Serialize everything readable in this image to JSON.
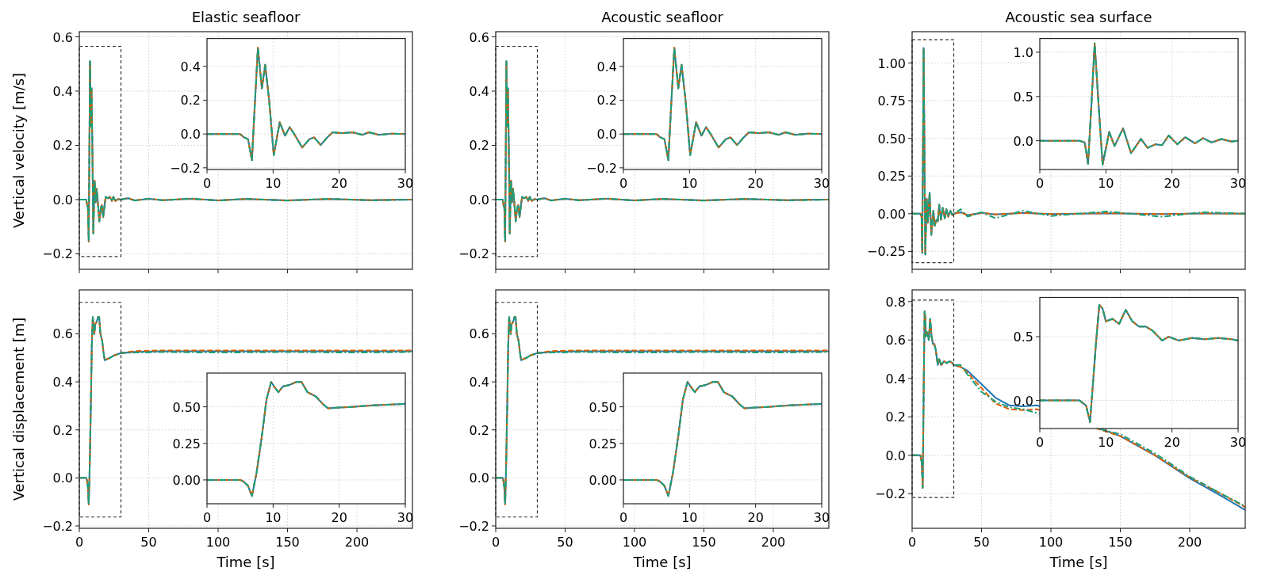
{
  "chart_data": [
    {
      "type": "line",
      "title": "Elastic seafloor",
      "ylabel": "Vertical velocity [m/s]",
      "tick_labels": "y",
      "grid": true,
      "xlim": [
        0,
        240
      ],
      "ylim": [
        -0.257,
        0.619
      ],
      "xticks": [
        0,
        50,
        100,
        150,
        200
      ],
      "yticks": [
        {
          "value": -0.2,
          "label": "−0.2"
        },
        {
          "value": 0,
          "label": "0.0"
        },
        {
          "value": 0.2,
          "label": "0.2"
        },
        {
          "value": 0.4,
          "label": "0.4"
        },
        {
          "value": 0.6,
          "label": "0.6"
        }
      ],
      "x": [
        0,
        5,
        5.6,
        6.2,
        6.8,
        7.2,
        7.7,
        8.3,
        8.8,
        9.4,
        10.1,
        11,
        11.8,
        12.5,
        13.2,
        14.4,
        15.5,
        16.2,
        17.2,
        18.2,
        19,
        20.5,
        22,
        23.5,
        24.5,
        26,
        28,
        30,
        35,
        40,
        50,
        60,
        80,
        100,
        120,
        150,
        180,
        210,
        240
      ],
      "series": [
        {
          "color": "#1f77b4",
          "line_style": "solid",
          "values": [
            0,
            0,
            -0.02,
            -0.03,
            -0.155,
            0.15,
            0.51,
            0.27,
            0.41,
            0.2,
            -0.125,
            0.07,
            -0.01,
            0.04,
            0.0,
            -0.08,
            -0.03,
            -0.02,
            -0.065,
            -0.02,
            0.01,
            0.005,
            0.01,
            -0.005,
            0.01,
            -0.005,
            0.002,
            0.0,
            0.005,
            -0.003,
            0.003,
            -0.002,
            0.003,
            -0.003,
            0.002,
            -0.003,
            0.002,
            -0.002,
            0
          ]
        },
        {
          "color": "#d95f02",
          "line_style": "dashed",
          "values": [
            0,
            0,
            -0.02,
            -0.03,
            -0.155,
            0.15,
            0.51,
            0.27,
            0.41,
            0.2,
            -0.125,
            0.07,
            -0.01,
            0.04,
            0.0,
            -0.08,
            -0.03,
            -0.02,
            -0.065,
            -0.02,
            0.01,
            0.005,
            0.01,
            -0.005,
            0.01,
            -0.005,
            0.002,
            0.0,
            0.005,
            -0.003,
            0.003,
            -0.002,
            0.003,
            -0.003,
            0.002,
            -0.003,
            0.002,
            -0.002,
            0
          ]
        },
        {
          "color": "#1b9e77",
          "line_style": "dashdot",
          "values": [
            0,
            0,
            -0.02,
            -0.03,
            -0.155,
            0.15,
            0.51,
            0.27,
            0.41,
            0.2,
            -0.125,
            0.07,
            -0.01,
            0.04,
            0.0,
            -0.08,
            -0.03,
            -0.02,
            -0.065,
            -0.02,
            0.01,
            0.005,
            0.01,
            -0.005,
            0.01,
            -0.005,
            0.002,
            0.0,
            0.006,
            -0.004,
            0.004,
            -0.003,
            0.004,
            -0.004,
            0.003,
            -0.004,
            0.003,
            -0.003,
            0
          ]
        }
      ]
    },
    {
      "type": "line",
      "grid": true,
      "xlim": [
        0,
        30
      ],
      "ylim": [
        -0.21,
        0.565
      ],
      "xticks": [
        0,
        10,
        20,
        30
      ],
      "yticks": [
        {
          "value": -0.2,
          "label": "−0.2"
        },
        {
          "value": 0,
          "label": "0.0"
        },
        {
          "value": 0.2,
          "label": "0.2"
        },
        {
          "value": 0.4,
          "label": "0.4"
        }
      ],
      "x": [
        0,
        5,
        5.6,
        6.2,
        6.8,
        7.2,
        7.7,
        8.3,
        8.8,
        9.4,
        10.1,
        11,
        11.8,
        12.5,
        13.2,
        14.4,
        15.5,
        16.2,
        17.2,
        18.2,
        19,
        20.5,
        22,
        23.5,
        24.5,
        26,
        28,
        30
      ],
      "series": [
        {
          "color": "#1f77b4",
          "line_style": "solid",
          "values": [
            0,
            0,
            -0.02,
            -0.03,
            -0.155,
            0.15,
            0.51,
            0.27,
            0.41,
            0.2,
            -0.125,
            0.07,
            -0.01,
            0.04,
            0.0,
            -0.08,
            -0.03,
            -0.02,
            -0.065,
            -0.02,
            0.01,
            0.005,
            0.01,
            -0.005,
            0.01,
            -0.005,
            0.002,
            0.0
          ]
        },
        {
          "color": "#d95f02",
          "line_style": "dashed",
          "values": [
            0,
            0,
            -0.02,
            -0.03,
            -0.155,
            0.15,
            0.51,
            0.27,
            0.41,
            0.2,
            -0.125,
            0.07,
            -0.01,
            0.04,
            0.0,
            -0.08,
            -0.03,
            -0.02,
            -0.065,
            -0.02,
            0.01,
            0.005,
            0.01,
            -0.005,
            0.01,
            -0.005,
            0.002,
            0.0
          ]
        },
        {
          "color": "#1b9e77",
          "line_style": "dashdot",
          "values": [
            0,
            0,
            -0.02,
            -0.03,
            -0.155,
            0.15,
            0.51,
            0.27,
            0.41,
            0.2,
            -0.125,
            0.07,
            -0.01,
            0.04,
            0.0,
            -0.08,
            -0.03,
            -0.02,
            -0.065,
            -0.02,
            0.01,
            0.005,
            0.01,
            -0.005,
            0.01,
            -0.005,
            0.002,
            0.0
          ]
        }
      ]
    },
    {
      "type": "line",
      "title": "Acoustic seafloor",
      "tick_labels": "y",
      "grid": true,
      "xlim": [
        0,
        240
      ],
      "ylim": [
        -0.257,
        0.619
      ],
      "xticks": [
        0,
        50,
        100,
        150,
        200
      ],
      "yticks": [
        {
          "value": -0.2,
          "label": "−0.2"
        },
        {
          "value": 0,
          "label": "0.0"
        },
        {
          "value": 0.2,
          "label": "0.2"
        },
        {
          "value": 0.4,
          "label": "0.4"
        },
        {
          "value": 0.6,
          "label": "0.6"
        }
      ],
      "x": [
        0,
        5,
        5.6,
        6.2,
        6.8,
        7.2,
        7.7,
        8.3,
        8.8,
        9.4,
        10.1,
        11,
        11.8,
        12.5,
        13.2,
        14.4,
        15.5,
        16.2,
        17.2,
        18.2,
        19,
        20.5,
        22,
        23.5,
        24.5,
        26,
        28,
        30,
        35,
        40,
        50,
        60,
        80,
        100,
        120,
        150,
        180,
        210,
        240
      ],
      "series": [
        {
          "color": "#1f77b4",
          "line_style": "solid",
          "values": [
            0,
            0,
            -0.02,
            -0.03,
            -0.155,
            0.15,
            0.51,
            0.27,
            0.41,
            0.2,
            -0.125,
            0.07,
            -0.01,
            0.04,
            0.0,
            -0.08,
            -0.03,
            -0.02,
            -0.065,
            -0.02,
            0.01,
            0.005,
            0.01,
            -0.005,
            0.01,
            -0.005,
            0.002,
            0.0,
            0.005,
            -0.003,
            0.003,
            -0.002,
            0.003,
            -0.003,
            0.002,
            -0.003,
            0.002,
            -0.002,
            0
          ]
        },
        {
          "color": "#d95f02",
          "line_style": "dashed",
          "values": [
            0,
            0,
            -0.02,
            -0.03,
            -0.155,
            0.15,
            0.51,
            0.27,
            0.41,
            0.2,
            -0.125,
            0.07,
            -0.01,
            0.04,
            0.0,
            -0.08,
            -0.03,
            -0.02,
            -0.065,
            -0.02,
            0.01,
            0.005,
            0.01,
            -0.005,
            0.01,
            -0.005,
            0.002,
            0.0,
            0.005,
            -0.003,
            0.003,
            -0.002,
            0.003,
            -0.003,
            0.002,
            -0.003,
            0.002,
            -0.002,
            0
          ]
        },
        {
          "color": "#1b9e77",
          "line_style": "dashdot",
          "values": [
            0,
            0,
            -0.02,
            -0.03,
            -0.155,
            0.15,
            0.51,
            0.27,
            0.41,
            0.2,
            -0.125,
            0.07,
            -0.01,
            0.04,
            0.0,
            -0.08,
            -0.03,
            -0.02,
            -0.065,
            -0.02,
            0.01,
            0.005,
            0.01,
            -0.005,
            0.01,
            -0.005,
            0.002,
            0.0,
            0.006,
            -0.004,
            0.004,
            -0.003,
            0.004,
            -0.004,
            0.003,
            -0.004,
            0.003,
            -0.003,
            0
          ]
        }
      ]
    },
    {
      "type": "line",
      "grid": true,
      "xlim": [
        0,
        30
      ],
      "ylim": [
        -0.21,
        0.565
      ],
      "xticks": [
        0,
        10,
        20,
        30
      ],
      "yticks": [
        {
          "value": -0.2,
          "label": "−0.2"
        },
        {
          "value": 0,
          "label": "0.0"
        },
        {
          "value": 0.2,
          "label": "0.2"
        },
        {
          "value": 0.4,
          "label": "0.4"
        }
      ],
      "x": [
        0,
        5,
        5.6,
        6.2,
        6.8,
        7.2,
        7.7,
        8.3,
        8.8,
        9.4,
        10.1,
        11,
        11.8,
        12.5,
        13.2,
        14.4,
        15.5,
        16.2,
        17.2,
        18.2,
        19,
        20.5,
        22,
        23.5,
        24.5,
        26,
        28,
        30
      ],
      "series": [
        {
          "color": "#1f77b4",
          "line_style": "solid",
          "values": [
            0,
            0,
            -0.02,
            -0.03,
            -0.155,
            0.15,
            0.51,
            0.27,
            0.41,
            0.2,
            -0.125,
            0.07,
            -0.01,
            0.04,
            0.0,
            -0.08,
            -0.03,
            -0.02,
            -0.065,
            -0.02,
            0.01,
            0.005,
            0.01,
            -0.005,
            0.01,
            -0.005,
            0.002,
            0.0
          ]
        },
        {
          "color": "#d95f02",
          "line_style": "dashed",
          "values": [
            0,
            0,
            -0.02,
            -0.03,
            -0.155,
            0.15,
            0.51,
            0.27,
            0.41,
            0.2,
            -0.125,
            0.07,
            -0.01,
            0.04,
            0.0,
            -0.08,
            -0.03,
            -0.02,
            -0.065,
            -0.02,
            0.01,
            0.005,
            0.01,
            -0.005,
            0.01,
            -0.005,
            0.002,
            0.0
          ]
        },
        {
          "color": "#1b9e77",
          "line_style": "dashdot",
          "values": [
            0,
            0,
            -0.02,
            -0.03,
            -0.155,
            0.15,
            0.51,
            0.27,
            0.41,
            0.2,
            -0.125,
            0.07,
            -0.01,
            0.04,
            0.0,
            -0.08,
            -0.03,
            -0.02,
            -0.065,
            -0.02,
            0.01,
            0.005,
            0.01,
            -0.005,
            0.01,
            -0.005,
            0.002,
            0.0
          ]
        }
      ]
    },
    {
      "type": "line",
      "title": "Acoustic sea surface",
      "tick_labels": "y",
      "grid": true,
      "xlim": [
        0,
        240
      ],
      "ylim": [
        -0.369,
        1.208
      ],
      "xticks": [
        0,
        50,
        100,
        150,
        200
      ],
      "yticks": [
        {
          "value": -0.25,
          "label": "−0.25"
        },
        {
          "value": 0,
          "label": "0.00"
        },
        {
          "value": 0.25,
          "label": "0.25"
        },
        {
          "value": 0.5,
          "label": "0.50"
        },
        {
          "value": 0.75,
          "label": "0.75"
        },
        {
          "value": 1,
          "label": "1.00"
        }
      ],
      "x": [
        0,
        6,
        6.8,
        7.3,
        7.8,
        8.3,
        8.9,
        9.5,
        10.5,
        11.3,
        12.6,
        13.8,
        15.3,
        16.3,
        17.5,
        18.5,
        19.5,
        20.8,
        22,
        23.5,
        24.7,
        26,
        27.5,
        29,
        30,
        35,
        40,
        50,
        60,
        80,
        100,
        140,
        180,
        210,
        240
      ],
      "series": [
        {
          "color": "#1f77b4",
          "line_style": "solid",
          "values": [
            0,
            0,
            -0.02,
            -0.26,
            0.4,
            1.1,
            0.4,
            -0.27,
            0.1,
            -0.06,
            0.14,
            -0.14,
            0.02,
            -0.08,
            -0.04,
            -0.05,
            0.06,
            -0.04,
            0.04,
            -0.03,
            0.03,
            -0.02,
            0.02,
            -0.01,
            0,
            0.01,
            -0.01,
            0.005,
            -0.005,
            0.005,
            -0.003,
            0.003,
            -0.003,
            0.002,
            0
          ]
        },
        {
          "color": "#d95f02",
          "line_style": "dashed",
          "values": [
            0,
            0,
            -0.02,
            -0.26,
            0.4,
            1.1,
            0.4,
            -0.27,
            0.1,
            -0.06,
            0.14,
            -0.14,
            0.02,
            -0.08,
            -0.04,
            -0.05,
            0.06,
            -0.04,
            0.04,
            -0.03,
            0.03,
            -0.02,
            0.02,
            -0.01,
            0,
            0.01,
            -0.01,
            0.005,
            -0.005,
            0.005,
            -0.003,
            0.003,
            -0.003,
            0.002,
            0
          ]
        },
        {
          "color": "#1b9e77",
          "line_style": "dashdot",
          "values": [
            0,
            0,
            -0.02,
            -0.26,
            0.4,
            1.1,
            0.4,
            -0.27,
            0.1,
            -0.06,
            0.14,
            -0.14,
            0.02,
            -0.08,
            -0.04,
            -0.05,
            0.06,
            -0.04,
            0.04,
            -0.03,
            0.03,
            -0.02,
            0.02,
            -0.01,
            0,
            0.03,
            -0.02,
            0.01,
            -0.03,
            0.02,
            -0.015,
            0.015,
            -0.02,
            0.01,
            0
          ]
        }
      ]
    },
    {
      "type": "line",
      "grid": true,
      "xlim": [
        0,
        30
      ],
      "ylim": [
        -0.325,
        1.155
      ],
      "xticks": [
        0,
        10,
        20,
        30
      ],
      "yticks": [
        {
          "value": 0,
          "label": "0.0"
        },
        {
          "value": 0.5,
          "label": "0.5"
        },
        {
          "value": 1,
          "label": "1.0"
        }
      ],
      "x": [
        0,
        6,
        6.8,
        7.3,
        7.8,
        8.3,
        8.9,
        9.5,
        10.5,
        11.3,
        12.6,
        13.8,
        15.3,
        16.3,
        17.5,
        18.5,
        19.5,
        20.8,
        22,
        23.5,
        24.7,
        26,
        27.5,
        29,
        30
      ],
      "series": [
        {
          "color": "#1f77b4",
          "line_style": "solid",
          "values": [
            0,
            0,
            -0.02,
            -0.26,
            0.4,
            1.1,
            0.4,
            -0.27,
            0.1,
            -0.06,
            0.14,
            -0.14,
            0.02,
            -0.08,
            -0.04,
            -0.05,
            0.06,
            -0.04,
            0.04,
            -0.03,
            0.03,
            -0.02,
            0.02,
            -0.01,
            0
          ]
        },
        {
          "color": "#d95f02",
          "line_style": "dashed",
          "values": [
            0,
            0,
            -0.02,
            -0.26,
            0.4,
            1.1,
            0.4,
            -0.27,
            0.1,
            -0.06,
            0.14,
            -0.14,
            0.02,
            -0.08,
            -0.04,
            -0.05,
            0.06,
            -0.04,
            0.04,
            -0.03,
            0.03,
            -0.02,
            0.02,
            -0.01,
            0
          ]
        },
        {
          "color": "#1b9e77",
          "line_style": "dashdot",
          "values": [
            0,
            0,
            -0.02,
            -0.26,
            0.4,
            1.1,
            0.4,
            -0.27,
            0.1,
            -0.06,
            0.14,
            -0.14,
            0.02,
            -0.08,
            -0.04,
            -0.05,
            0.06,
            -0.04,
            0.04,
            -0.03,
            0.03,
            -0.02,
            0.02,
            -0.01,
            0
          ]
        }
      ]
    },
    {
      "type": "line",
      "ylabel": "Vertical displacement [m]",
      "xlabel": "Time [s]",
      "grid": true,
      "xlim": [
        0,
        240
      ],
      "ylim": [
        -0.21,
        0.783
      ],
      "xticks": [
        0,
        50,
        100,
        150,
        200
      ],
      "yticks": [
        {
          "value": -0.2,
          "label": "−0.2"
        },
        {
          "value": 0,
          "label": "0.0"
        },
        {
          "value": 0.2,
          "label": "0.2"
        },
        {
          "value": 0.4,
          "label": "0.4"
        },
        {
          "value": 0.6,
          "label": "0.6"
        }
      ],
      "x": [
        0,
        5,
        5.5,
        6.2,
        6.8,
        7.5,
        8.3,
        9,
        9.7,
        10.3,
        10.8,
        11.5,
        12.5,
        13.5,
        14.3,
        15.2,
        16.5,
        17.5,
        18.3,
        20,
        22,
        25,
        30,
        40,
        60,
        100,
        150,
        200,
        240
      ],
      "series": [
        {
          "color": "#1f77b4",
          "line_style": "solid",
          "values": [
            0,
            0,
            -0.01,
            -0.04,
            -0.11,
            0.05,
            0.3,
            0.55,
            0.67,
            0.63,
            0.6,
            0.64,
            0.65,
            0.67,
            0.67,
            0.6,
            0.57,
            0.52,
            0.49,
            0.495,
            0.5,
            0.51,
            0.52,
            0.525,
            0.527,
            0.527,
            0.527,
            0.527,
            0.527
          ]
        },
        {
          "color": "#d95f02",
          "line_style": "dashed",
          "values": [
            0,
            0,
            -0.01,
            -0.04,
            -0.11,
            0.05,
            0.3,
            0.55,
            0.67,
            0.63,
            0.6,
            0.64,
            0.65,
            0.67,
            0.67,
            0.6,
            0.57,
            0.52,
            0.49,
            0.495,
            0.5,
            0.51,
            0.52,
            0.528,
            0.531,
            0.531,
            0.531,
            0.531,
            0.531
          ]
        },
        {
          "color": "#1b9e77",
          "line_style": "dashdot",
          "values": [
            0,
            0,
            -0.01,
            -0.04,
            -0.11,
            0.05,
            0.3,
            0.55,
            0.67,
            0.63,
            0.6,
            0.64,
            0.65,
            0.67,
            0.67,
            0.6,
            0.57,
            0.52,
            0.49,
            0.495,
            0.5,
            0.51,
            0.52,
            0.522,
            0.524,
            0.522,
            0.524,
            0.522,
            0.524
          ]
        }
      ]
    },
    {
      "type": "line",
      "grid": true,
      "xlim": [
        0,
        30
      ],
      "ylim": [
        -0.163,
        0.731
      ],
      "xticks": [
        0,
        10,
        20,
        30
      ],
      "yticks": [
        {
          "value": 0,
          "label": "0.00"
        },
        {
          "value": 0.25,
          "label": "0.25"
        },
        {
          "value": 0.5,
          "label": "0.50"
        }
      ],
      "x": [
        0,
        5,
        5.5,
        6.2,
        6.8,
        7.5,
        8.3,
        9,
        9.7,
        10.3,
        10.8,
        11.5,
        12.5,
        13.5,
        14.3,
        15.2,
        16.5,
        17.5,
        18.3,
        20,
        22,
        25,
        30
      ],
      "series": [
        {
          "color": "#1f77b4",
          "line_style": "solid",
          "values": [
            0,
            0,
            -0.01,
            -0.04,
            -0.11,
            0.05,
            0.3,
            0.55,
            0.67,
            0.63,
            0.6,
            0.64,
            0.65,
            0.67,
            0.67,
            0.6,
            0.57,
            0.52,
            0.49,
            0.495,
            0.5,
            0.51,
            0.52
          ]
        },
        {
          "color": "#d95f02",
          "line_style": "dashed",
          "values": [
            0,
            0,
            -0.01,
            -0.04,
            -0.11,
            0.05,
            0.3,
            0.55,
            0.67,
            0.63,
            0.6,
            0.64,
            0.65,
            0.67,
            0.67,
            0.6,
            0.57,
            0.52,
            0.49,
            0.495,
            0.5,
            0.51,
            0.52
          ]
        },
        {
          "color": "#1b9e77",
          "line_style": "dashdot",
          "values": [
            0,
            0,
            -0.01,
            -0.04,
            -0.11,
            0.05,
            0.3,
            0.55,
            0.67,
            0.63,
            0.6,
            0.64,
            0.65,
            0.67,
            0.67,
            0.6,
            0.57,
            0.52,
            0.49,
            0.495,
            0.5,
            0.51,
            0.52
          ]
        }
      ]
    },
    {
      "type": "line",
      "xlabel": "Time [s]",
      "grid": true,
      "xlim": [
        0,
        240
      ],
      "ylim": [
        -0.21,
        0.783
      ],
      "xticks": [
        0,
        50,
        100,
        150,
        200
      ],
      "yticks": [
        {
          "value": -0.2,
          "label": "−0.2"
        },
        {
          "value": 0,
          "label": "0.0"
        },
        {
          "value": 0.2,
          "label": "0.2"
        },
        {
          "value": 0.4,
          "label": "0.4"
        },
        {
          "value": 0.6,
          "label": "0.6"
        }
      ],
      "x": [
        0,
        5,
        5.5,
        6.2,
        6.8,
        7.5,
        8.3,
        9,
        9.7,
        10.3,
        10.8,
        11.5,
        12.5,
        13.5,
        14.3,
        15.2,
        16.5,
        17.5,
        18.3,
        20,
        22,
        25,
        30,
        40,
        60,
        100,
        150,
        200,
        240
      ],
      "series": [
        {
          "color": "#1f77b4",
          "line_style": "solid",
          "values": [
            0,
            0,
            -0.01,
            -0.04,
            -0.11,
            0.05,
            0.3,
            0.55,
            0.67,
            0.63,
            0.6,
            0.64,
            0.65,
            0.67,
            0.67,
            0.6,
            0.57,
            0.52,
            0.49,
            0.495,
            0.5,
            0.51,
            0.52,
            0.525,
            0.527,
            0.527,
            0.527,
            0.527,
            0.527
          ]
        },
        {
          "color": "#d95f02",
          "line_style": "dashed",
          "values": [
            0,
            0,
            -0.01,
            -0.04,
            -0.11,
            0.05,
            0.3,
            0.55,
            0.67,
            0.63,
            0.6,
            0.64,
            0.65,
            0.67,
            0.67,
            0.6,
            0.57,
            0.52,
            0.49,
            0.495,
            0.5,
            0.51,
            0.52,
            0.528,
            0.531,
            0.531,
            0.531,
            0.531,
            0.531
          ]
        },
        {
          "color": "#1b9e77",
          "line_style": "dashdot",
          "values": [
            0,
            0,
            -0.01,
            -0.04,
            -0.11,
            0.05,
            0.3,
            0.55,
            0.67,
            0.63,
            0.6,
            0.64,
            0.65,
            0.67,
            0.67,
            0.6,
            0.57,
            0.52,
            0.49,
            0.495,
            0.5,
            0.51,
            0.52,
            0.522,
            0.524,
            0.522,
            0.524,
            0.522,
            0.524
          ]
        }
      ]
    },
    {
      "type": "line",
      "grid": true,
      "xlim": [
        0,
        30
      ],
      "ylim": [
        -0.163,
        0.731
      ],
      "xticks": [
        0,
        10,
        20,
        30
      ],
      "yticks": [
        {
          "value": 0,
          "label": "0.00"
        },
        {
          "value": 0.25,
          "label": "0.25"
        },
        {
          "value": 0.5,
          "label": "0.50"
        }
      ],
      "x": [
        0,
        5,
        5.5,
        6.2,
        6.8,
        7.5,
        8.3,
        9,
        9.7,
        10.3,
        10.8,
        11.5,
        12.5,
        13.5,
        14.3,
        15.2,
        16.5,
        17.5,
        18.3,
        20,
        22,
        25,
        30
      ],
      "series": [
        {
          "color": "#1f77b4",
          "line_style": "solid",
          "values": [
            0,
            0,
            -0.01,
            -0.04,
            -0.11,
            0.05,
            0.3,
            0.55,
            0.67,
            0.63,
            0.6,
            0.64,
            0.65,
            0.67,
            0.67,
            0.6,
            0.57,
            0.52,
            0.49,
            0.495,
            0.5,
            0.51,
            0.52
          ]
        },
        {
          "color": "#d95f02",
          "line_style": "dashed",
          "values": [
            0,
            0,
            -0.01,
            -0.04,
            -0.11,
            0.05,
            0.3,
            0.55,
            0.67,
            0.63,
            0.6,
            0.64,
            0.65,
            0.67,
            0.67,
            0.6,
            0.57,
            0.52,
            0.49,
            0.495,
            0.5,
            0.51,
            0.52
          ]
        },
        {
          "color": "#1b9e77",
          "line_style": "dashdot",
          "values": [
            0,
            0,
            -0.01,
            -0.04,
            -0.11,
            0.05,
            0.3,
            0.55,
            0.67,
            0.63,
            0.6,
            0.64,
            0.65,
            0.67,
            0.67,
            0.6,
            0.57,
            0.52,
            0.49,
            0.495,
            0.5,
            0.51,
            0.52
          ]
        }
      ]
    },
    {
      "type": "line",
      "xlabel": "Time [s]",
      "grid": true,
      "xlim": [
        0,
        240
      ],
      "ylim": [
        -0.38,
        0.861
      ],
      "xticks": [
        0,
        50,
        100,
        150,
        200
      ],
      "yticks": [
        {
          "value": -0.2,
          "label": "−0.2"
        },
        {
          "value": 0,
          "label": "0.0"
        },
        {
          "value": 0.2,
          "label": "0.2"
        },
        {
          "value": 0.4,
          "label": "0.4"
        },
        {
          "value": 0.6,
          "label": "0.6"
        },
        {
          "value": 0.8,
          "label": "0.8"
        }
      ],
      "x": [
        0,
        6,
        7,
        7.6,
        8.5,
        9,
        9.5,
        10,
        11,
        12,
        13,
        14,
        15,
        16,
        17,
        18.5,
        19.5,
        21,
        23,
        25,
        27,
        29,
        30,
        35,
        40,
        50,
        60,
        70,
        80,
        90,
        150,
        175,
        200,
        220,
        240
      ],
      "series": [
        {
          "color": "#1f77b4",
          "line_style": "solid",
          "values": [
            0,
            0,
            -0.04,
            -0.17,
            0.45,
            0.75,
            0.72,
            0.62,
            0.64,
            0.6,
            0.71,
            0.62,
            0.58,
            0.58,
            0.55,
            0.47,
            0.5,
            0.47,
            0.49,
            0.48,
            0.49,
            0.48,
            0.47,
            0.46,
            0.44,
            0.37,
            0.3,
            0.26,
            0.255,
            0.26,
            0.1,
            0.0,
            -0.12,
            -0.2,
            -0.285
          ]
        },
        {
          "color": "#d95f02",
          "line_style": "dashed",
          "values": [
            0,
            0,
            -0.04,
            -0.17,
            0.45,
            0.75,
            0.72,
            0.62,
            0.64,
            0.6,
            0.71,
            0.62,
            0.58,
            0.58,
            0.55,
            0.47,
            0.5,
            0.47,
            0.49,
            0.48,
            0.49,
            0.48,
            0.47,
            0.46,
            0.43,
            0.35,
            0.27,
            0.24,
            0.235,
            0.24,
            0.1,
            0.0,
            -0.115,
            -0.19,
            -0.27
          ]
        },
        {
          "color": "#1b9e77",
          "line_style": "dashdot",
          "values": [
            0,
            0,
            -0.04,
            -0.17,
            0.45,
            0.75,
            0.72,
            0.62,
            0.64,
            0.6,
            0.71,
            0.62,
            0.58,
            0.58,
            0.55,
            0.47,
            0.5,
            0.47,
            0.49,
            0.48,
            0.49,
            0.48,
            0.47,
            0.47,
            0.42,
            0.33,
            0.28,
            0.25,
            0.24,
            0.22,
            0.11,
            0.01,
            -0.11,
            -0.19,
            -0.265
          ]
        }
      ]
    },
    {
      "type": "line",
      "grid": true,
      "xlim": [
        0,
        30
      ],
      "ylim": [
        -0.22,
        0.808
      ],
      "xticks": [
        0,
        10,
        20,
        30
      ],
      "yticks": [
        {
          "value": 0,
          "label": "0.0"
        },
        {
          "value": 0.5,
          "label": "0.5"
        }
      ],
      "x": [
        0,
        6,
        7,
        7.6,
        8.5,
        9,
        9.5,
        10,
        11,
        12,
        13,
        14,
        15,
        16,
        17,
        18.5,
        19.5,
        21,
        23,
        25,
        27,
        29,
        30
      ],
      "series": [
        {
          "color": "#1f77b4",
          "line_style": "solid",
          "values": [
            0,
            0,
            -0.04,
            -0.17,
            0.45,
            0.75,
            0.72,
            0.62,
            0.64,
            0.6,
            0.71,
            0.62,
            0.58,
            0.58,
            0.55,
            0.47,
            0.5,
            0.47,
            0.49,
            0.48,
            0.49,
            0.48,
            0.47
          ]
        },
        {
          "color": "#d95f02",
          "line_style": "dashed",
          "values": [
            0,
            0,
            -0.04,
            -0.17,
            0.45,
            0.75,
            0.72,
            0.62,
            0.64,
            0.6,
            0.71,
            0.62,
            0.58,
            0.58,
            0.55,
            0.47,
            0.5,
            0.47,
            0.49,
            0.48,
            0.49,
            0.48,
            0.47
          ]
        },
        {
          "color": "#1b9e77",
          "line_style": "dashdot",
          "values": [
            0,
            0,
            -0.04,
            -0.17,
            0.45,
            0.75,
            0.72,
            0.62,
            0.64,
            0.6,
            0.71,
            0.62,
            0.58,
            0.58,
            0.55,
            0.47,
            0.5,
            0.47,
            0.49,
            0.48,
            0.49,
            0.48,
            0.47
          ]
        }
      ]
    }
  ]
}
